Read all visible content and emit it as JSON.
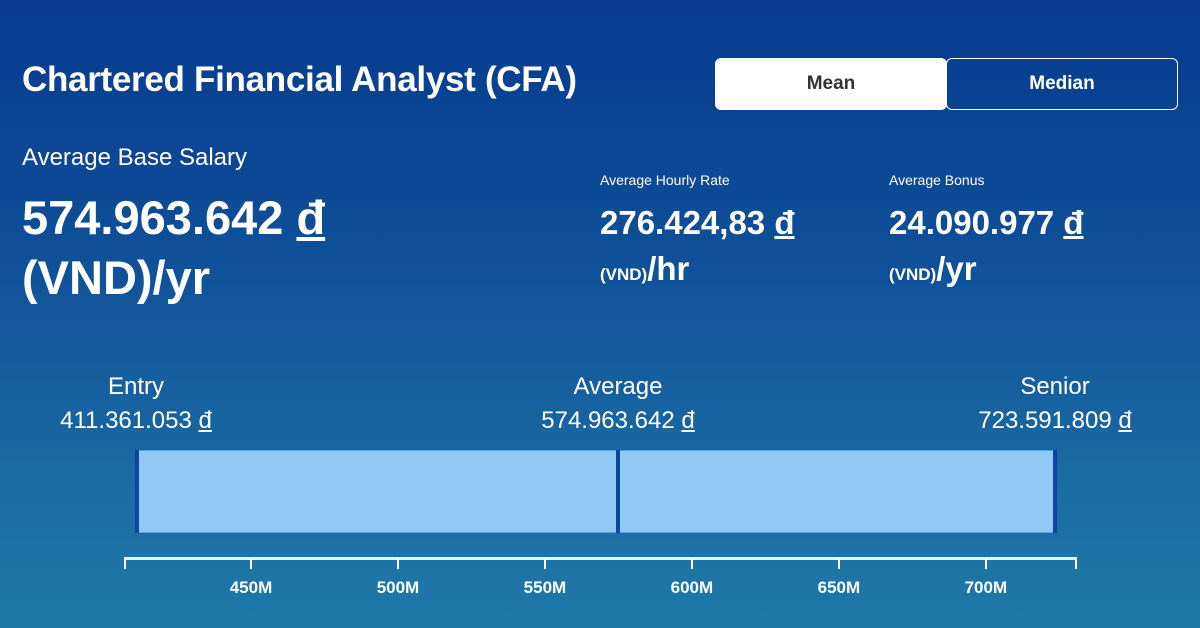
{
  "title": "Chartered Financial Analyst (CFA)",
  "toggle": {
    "mean": "Mean",
    "median": "Median",
    "selected": "Mean"
  },
  "base_salary": {
    "label": "Average Base Salary",
    "amount": "574.963.642",
    "currency_symbol": "đ",
    "unit": "(VND)/yr"
  },
  "hourly": {
    "label": "Average Hourly Rate",
    "amount": "276.424,83",
    "currency_symbol": "đ",
    "vnd": "(VND)",
    "per": "/hr"
  },
  "bonus": {
    "label": "Average Bonus",
    "amount": "24.090.977",
    "currency_symbol": "đ",
    "vnd": "(VND)",
    "per": "/yr"
  },
  "levels": {
    "entry": {
      "label": "Entry",
      "value": "411.361.053",
      "currency_symbol": "đ"
    },
    "average": {
      "label": "Average",
      "value": "574.963.642",
      "currency_symbol": "đ"
    },
    "senior": {
      "label": "Senior",
      "value": "723.591.809",
      "currency_symbol": "đ"
    }
  },
  "chart_data": {
    "type": "bar",
    "range_values_millions": {
      "entry": 411.361053,
      "average": 574.963642,
      "senior": 723.591809
    },
    "xlim": [
      406.8,
      731
    ],
    "ticks": [
      450,
      500,
      550,
      600,
      650,
      700
    ],
    "tick_labels": [
      "450M",
      "500M",
      "550M",
      "600M",
      "650M",
      "700M"
    ],
    "colors": {
      "bar": "#90c9f5",
      "marker": "#0d47a1"
    }
  }
}
